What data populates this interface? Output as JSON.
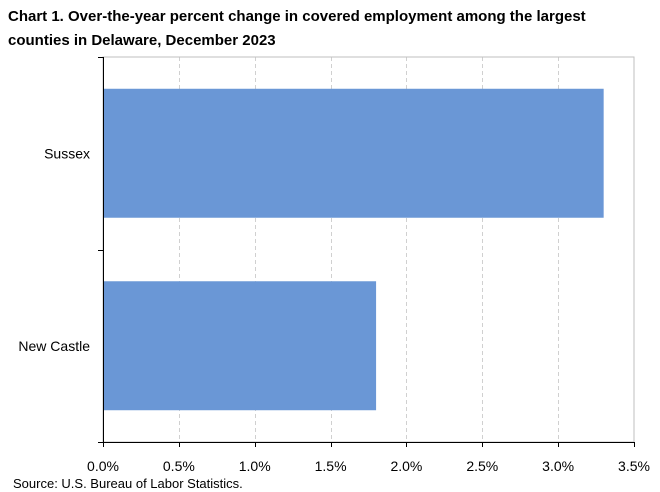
{
  "title": "Chart 1. Over-the-year percent change in covered employment among the largest counties in Delaware,  December 2023",
  "source": "Source: U.S. Bureau of Labor Statistics.",
  "chart_data": {
    "type": "bar",
    "orientation": "horizontal",
    "categories": [
      "Sussex",
      "New Castle"
    ],
    "values": [
      3.3,
      1.8
    ],
    "xlim": [
      0,
      3.5
    ],
    "x_ticks": [
      0,
      0.5,
      1.0,
      1.5,
      2.0,
      2.5,
      3.0,
      3.5
    ],
    "x_tick_labels": [
      "0.0%",
      "0.5%",
      "1.0%",
      "1.5%",
      "2.0%",
      "2.5%",
      "3.0%",
      "3.5%"
    ],
    "grid": "vertical dashed",
    "legend": "none",
    "bar_color": "#6a97d6",
    "grid_color": "#d0d0d0",
    "axis_color": "#000000"
  }
}
